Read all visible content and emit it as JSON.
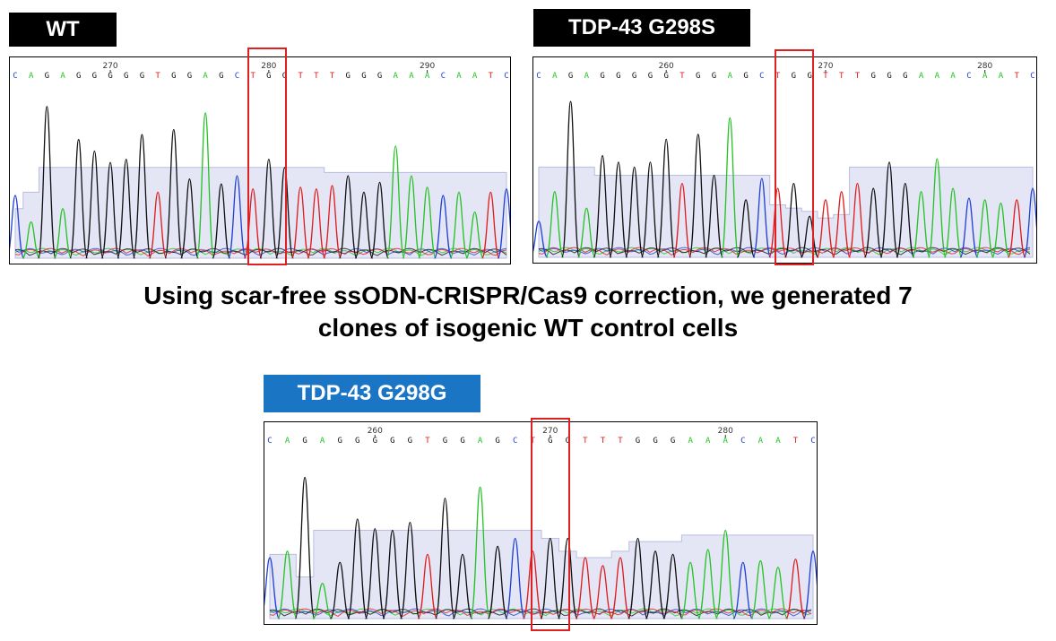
{
  "labels": {
    "wt": "WT",
    "g298s": "TDP-43 G298S",
    "g298g": "TDP-43 G298G"
  },
  "caption": {
    "line1": "Using scar-free ssODN-CRISPR/Cas9 correction, we generated 7",
    "line2": "clones of isogenic WT control cells"
  },
  "colors": {
    "label_black": "#000000",
    "label_blue": "#1a75c4",
    "A": "#22c322",
    "C": "#1f3fd6",
    "G": "#111111",
    "T": "#e01b1b",
    "quality_band": "#e4e6f6",
    "highlight": "#e02020"
  },
  "chromatograms": [
    {
      "id": "wt",
      "sequence": "CAGAGGGGGTGGAGCTGGTTTGGGAAACAATC",
      "ticks": [
        {
          "label": "270",
          "index": 6
        },
        {
          "label": "280",
          "index": 16
        },
        {
          "label": "290",
          "index": 26
        }
      ],
      "heights": [
        0.38,
        0.22,
        0.92,
        0.3,
        0.72,
        0.65,
        0.58,
        0.6,
        0.75,
        0.4,
        0.78,
        0.48,
        0.88,
        0.45,
        0.5,
        0.42,
        0.6,
        0.55,
        0.43,
        0.42,
        0.44,
        0.5,
        0.4,
        0.46,
        0.68,
        0.5,
        0.43,
        0.38,
        0.4,
        0.28,
        0.4,
        0.42
      ],
      "quality": [
        0.3,
        0.4,
        0.55,
        0.55,
        0.55,
        0.55,
        0.55,
        0.55,
        0.55,
        0.55,
        0.55,
        0.55,
        0.55,
        0.55,
        0.55,
        0.55,
        0.55,
        0.55,
        0.55,
        0.55,
        0.52,
        0.52,
        0.52,
        0.52,
        0.52,
        0.52,
        0.52,
        0.52,
        0.52,
        0.52,
        0.52,
        0.52
      ]
    },
    {
      "id": "g298s",
      "sequence": "CAGAGGGGGTGGAGCTGGTTTGGGAAACAATC",
      "ticks": [
        {
          "label": "260",
          "index": 8
        },
        {
          "label": "270",
          "index": 18
        },
        {
          "label": "280",
          "index": 28
        }
      ],
      "heights": [
        0.22,
        0.4,
        0.95,
        0.3,
        0.62,
        0.58,
        0.55,
        0.58,
        0.72,
        0.45,
        0.75,
        0.5,
        0.85,
        0.35,
        0.48,
        0.42,
        0.45,
        0.25,
        0.35,
        0.4,
        0.45,
        0.42,
        0.58,
        0.45,
        0.4,
        0.6,
        0.42,
        0.36,
        0.35,
        0.33,
        0.35,
        0.42
      ],
      "quality": [
        0.55,
        0.55,
        0.55,
        0.55,
        0.5,
        0.5,
        0.5,
        0.5,
        0.5,
        0.5,
        0.5,
        0.5,
        0.5,
        0.5,
        0.5,
        0.32,
        0.3,
        0.28,
        0.24,
        0.26,
        0.55,
        0.55,
        0.55,
        0.55,
        0.55,
        0.55,
        0.55,
        0.55,
        0.55,
        0.55,
        0.55,
        0.55
      ]
    },
    {
      "id": "g298g",
      "sequence": "CAGAGGGGGTGGAGCTGGTTTGGGAAACAATC",
      "ticks": [
        {
          "label": "260",
          "index": 6
        },
        {
          "label": "270",
          "index": 16
        },
        {
          "label": "280",
          "index": 26
        }
      ],
      "heights": [
        0.38,
        0.42,
        0.88,
        0.22,
        0.35,
        0.62,
        0.56,
        0.55,
        0.6,
        0.4,
        0.75,
        0.4,
        0.82,
        0.45,
        0.5,
        0.42,
        0.5,
        0.5,
        0.38,
        0.33,
        0.38,
        0.5,
        0.42,
        0.4,
        0.35,
        0.43,
        0.55,
        0.35,
        0.36,
        0.32,
        0.37,
        0.42
      ],
      "quality": [
        0.4,
        0.4,
        0.26,
        0.55,
        0.55,
        0.55,
        0.55,
        0.55,
        0.55,
        0.55,
        0.55,
        0.55,
        0.55,
        0.55,
        0.55,
        0.55,
        0.5,
        0.42,
        0.38,
        0.38,
        0.42,
        0.48,
        0.48,
        0.48,
        0.52,
        0.52,
        0.52,
        0.52,
        0.52,
        0.52,
        0.52,
        0.52
      ]
    }
  ]
}
